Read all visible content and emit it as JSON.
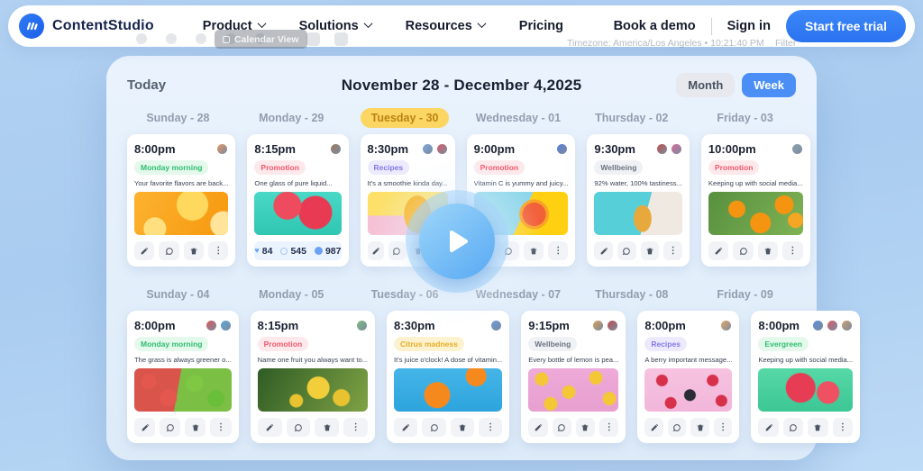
{
  "navbar": {
    "brand": "ContentStudio",
    "links": [
      {
        "label": "Product",
        "chevron": true
      },
      {
        "label": "Solutions",
        "chevron": true
      },
      {
        "label": "Resources",
        "chevron": true
      },
      {
        "label": "Pricing",
        "chevron": false
      }
    ],
    "book_demo": "Book a demo",
    "sign_in": "Sign in",
    "cta": "Start free trial"
  },
  "ghost": {
    "calendar_view": "Calendar View",
    "timezone": "Timezone: America/Los Angeles • 10:21:40 PM",
    "filter": "Filter"
  },
  "calendar": {
    "today_label": "Today",
    "title": "November 28 - December 4,2025",
    "view_month": "Month",
    "view_week": "Week",
    "active_view": "Week",
    "weeks": [
      {
        "days": [
          "Sunday - 28",
          "Monday - 29",
          "Tuesday - 30",
          "Wednesday - 01",
          "Thursday - 02",
          "Friday - 03"
        ],
        "highlight_index": 2,
        "cards": [
          {
            "time": "8:00pm",
            "avatars": [
              "#e59866"
            ],
            "tag": "Monday morning",
            "tag_color": "green",
            "text": "Your favorite flavors are back...",
            "image_name": "oranges-closeup",
            "footer": "actions",
            "img": "radial-gradient(circle at 22% 85%, #ffdf7e 0 12px, rgba(0,0,0,0) 13px), radial-gradient(circle at 62% 30%, #ffd95e 0 17px, rgba(0,0,0,0) 18px), radial-gradient(circle at 95% 75%, #ffe49a 0 14px, rgba(0,0,0,0) 15px), linear-gradient(115deg, #fcb22f, #f7980e)"
          },
          {
            "time": "8:15pm",
            "avatars": [
              "#9c7b5f"
            ],
            "tag": "Promotion",
            "tag_color": "red",
            "text": "One glass of pure liquid...",
            "image_name": "watermelon-slices-teal",
            "footer": "stats",
            "stats": [
              {
                "icon": "like",
                "value": "84"
              },
              {
                "icon": "comments",
                "value": "545"
              },
              {
                "icon": "impressions",
                "value": "987"
              }
            ],
            "img": "radial-gradient(circle at 38% 32%, #ef4b5e 0 15px, rgba(0,0,0,0) 16px), radial-gradient(circle at 70% 48%, #e83a52 0 18px, rgba(0,0,0,0) 19px), linear-gradient(180deg, #49d9c6, #2fc6b2)"
          },
          {
            "time": "8:30pm",
            "avatars": [
              "#7fa8d9",
              "#d95b66"
            ],
            "tag": "Recipes",
            "tag_color": "purple",
            "text": "It's a smoothie kinda day...",
            "image_name": "mango-yellow-pink",
            "footer": "actions",
            "img": "radial-gradient(ellipse 15px 21px at 62% 52%, #f8b019 0 98%, rgba(0,0,0,0) 100%), linear-gradient(180deg, #fce06a 0 55%, #f6c1d4 55%)"
          },
          {
            "time": "9:00pm",
            "avatars": [
              "#5b7fd9"
            ],
            "tag": "Promotion",
            "tag_color": "red",
            "text": "Vitamin C is yummy and juicy...",
            "image_name": "grapefruit-blue-yellow",
            "footer": "actions",
            "img": "radial-gradient(circle at 64% 52%, #f2603a 0 13px, #f8a326 13px 16px, rgba(0,0,0,0) 17px), linear-gradient(115deg, #8ed6ea 0 52%, #ffd012 52%)"
          },
          {
            "time": "9:30pm",
            "avatars": [
              "#c0504d",
              "#d96b9b"
            ],
            "tag": "Wellbeing",
            "tag_color": "gray",
            "text": "92% water, 100% tastiness...",
            "image_name": "pineapple-poolside",
            "footer": "actions",
            "img": "radial-gradient(ellipse 10px 15px at 55% 62%, #e8a93c 0 98%, rgba(0,0,0,0) 100%), linear-gradient(105deg, #57cfd8 0 58%, #efe9e2 58%)"
          },
          {
            "time": "10:00pm",
            "avatars": [
              "#8fa3b0"
            ],
            "tag": "Promotion",
            "tag_color": "red",
            "text": "Keeping up with social media...",
            "image_name": "oranges-on-tree",
            "footer": "actions",
            "img": "radial-gradient(circle at 30% 40%, #f59411 0 9px, rgba(0,0,0,0) 10px), radial-gradient(circle at 55% 72%, #f59411 0 11px, rgba(0,0,0,0) 12px), radial-gradient(circle at 80% 30%, #f59411 0 10px, rgba(0,0,0,0) 11px), radial-gradient(circle at 92% 66%, #f5a623 0 8px, rgba(0,0,0,0) 9px), linear-gradient(120deg, #57903f, #7fb254)"
          }
        ]
      },
      {
        "days": [
          "Sunday - 04",
          "Monday - 05",
          "Tuesday - 06",
          "Wednesday - 07",
          "Thursday - 08",
          "Friday - 09"
        ],
        "highlight_index": -1,
        "cards": [
          {
            "time": "8:00pm",
            "avatars": [
              "#d95b5b",
              "#5ba8d9"
            ],
            "tag": "Monday morning",
            "tag_color": "green",
            "text": "The grass is always greener o...",
            "image_name": "red-green-apples",
            "footer": "actions",
            "img": "radial-gradient(circle at 15% 30%, #e4574e 0 8px, rgba(0,0,0,0) 9px), radial-gradient(circle at 35% 68%, #e4574e 0 9px, rgba(0,0,0,0) 10px), radial-gradient(circle at 62% 35%, #7ec843 0 9px, rgba(0,0,0,0) 10px), radial-gradient(circle at 84% 70%, #6abf3a 0 9px, rgba(0,0,0,0) 10px), linear-gradient(100deg, #d9544b 0 45%, #7cbf45 45%)"
          },
          {
            "time": "8:15pm",
            "avatars": [
              "#7fbf7f"
            ],
            "tag": "Promotion",
            "tag_color": "red",
            "text": "Name one fruit you always want to...",
            "image_name": "yellow-blossoms-tree",
            "footer": "actions",
            "img": "radial-gradient(circle at 55% 45%, #f2ce3a 0 12px, rgba(0,0,0,0) 13px), radial-gradient(circle at 76% 68%, #e8c22f 0 9px, rgba(0,0,0,0) 10px), radial-gradient(circle at 35% 75%, #e8c22f 0 7px, rgba(0,0,0,0) 8px), linear-gradient(120deg, #2f5c25, #7fa244)"
          },
          {
            "time": "8:30pm",
            "avatars": [
              "#6b9bd9"
            ],
            "tag": "Citrus madness",
            "tag_color": "yellow",
            "text": "It's juice o'clock! A dose of vitamin...",
            "image_name": "orange-slices-water",
            "footer": "actions",
            "img": "radial-gradient(circle at 40% 62%, #f6891e 0 14px, rgba(0,0,0,0) 15px), radial-gradient(circle at 76% 18%, #f6891e 0 11px, rgba(0,0,0,0) 12px), linear-gradient(180deg, #45b5e8, #2da4dd)"
          },
          {
            "time": "9:15pm",
            "avatars": [
              "#d9a15b",
              "#c04d4d"
            ],
            "tag": "Wellbeing",
            "tag_color": "gray",
            "text": "Every bottle of lemon is pea...",
            "image_name": "lemon-halves-pink",
            "footer": "actions",
            "img": "radial-gradient(circle at 15% 25%, #f4c737 0 7px, rgba(0,0,0,0) 8px), radial-gradient(circle at 45% 55%, #f4c737 0 7px, rgba(0,0,0,0) 8px), radial-gradient(circle at 75% 22%, #f4c737 0 7px, rgba(0,0,0,0) 8px), radial-gradient(circle at 90% 70%, #f4c737 0 7px, rgba(0,0,0,0) 8px), radial-gradient(circle at 25% 82%, #f4c737 0 7px, rgba(0,0,0,0) 8px), linear-gradient(#eeaad8, #e79fd0)"
          },
          {
            "time": "8:00pm",
            "avatars": [
              "#e5a866"
            ],
            "tag": "Recipes",
            "tag_color": "purple",
            "text": "A berry important message...",
            "image_name": "raspberries-pink",
            "footer": "actions",
            "img": "radial-gradient(circle at 20% 28%, #d6304b 0 6px, rgba(0,0,0,0) 7px), radial-gradient(circle at 52% 62%, #2b2b35 0 6px, rgba(0,0,0,0) 7px), radial-gradient(circle at 78% 28%, #d6304b 0 6px, rgba(0,0,0,0) 7px), radial-gradient(circle at 88% 75%, #d6304b 0 6px, rgba(0,0,0,0) 7px), radial-gradient(circle at 30% 80%, #d6304b 0 6px, rgba(0,0,0,0) 7px), linear-gradient(#f6c3e0, #f2b6da)"
          },
          {
            "time": "8:00pm",
            "avatars": [
              "#5b8fd9",
              "#d95b66",
              "#c9a06b"
            ],
            "tag": "Evergreen",
            "tag_color": "green",
            "text": "Keeping up with social media...",
            "image_name": "watermelon-slices-green",
            "footer": "actions",
            "img": "radial-gradient(circle at 45% 45%, #e63d55 0 16px, rgba(0,0,0,0) 17px), radial-gradient(circle at 74% 56%, #ef5062 0 12px, rgba(0,0,0,0) 13px), linear-gradient(180deg, #57d8a7, #3cc795)"
          }
        ]
      }
    ]
  },
  "colors": {
    "accent_blue": "#4b8ef5",
    "cta_blue": "#2f7bf6",
    "brand_navy": "#16244c",
    "day_highlight_bg": "#fcd662",
    "day_highlight_fg": "#bb8414",
    "tags": {
      "green": {
        "bg": "#e4f8ec",
        "fg": "#2fbf71"
      },
      "red": {
        "bg": "#fde9ec",
        "fg": "#f1586b"
      },
      "purple": {
        "bg": "#eceafc",
        "fg": "#8579e8"
      },
      "gray": {
        "bg": "#f0f1f4",
        "fg": "#6a7382"
      },
      "yellow": {
        "bg": "#fdf2cf",
        "fg": "#e4ad25"
      }
    }
  }
}
